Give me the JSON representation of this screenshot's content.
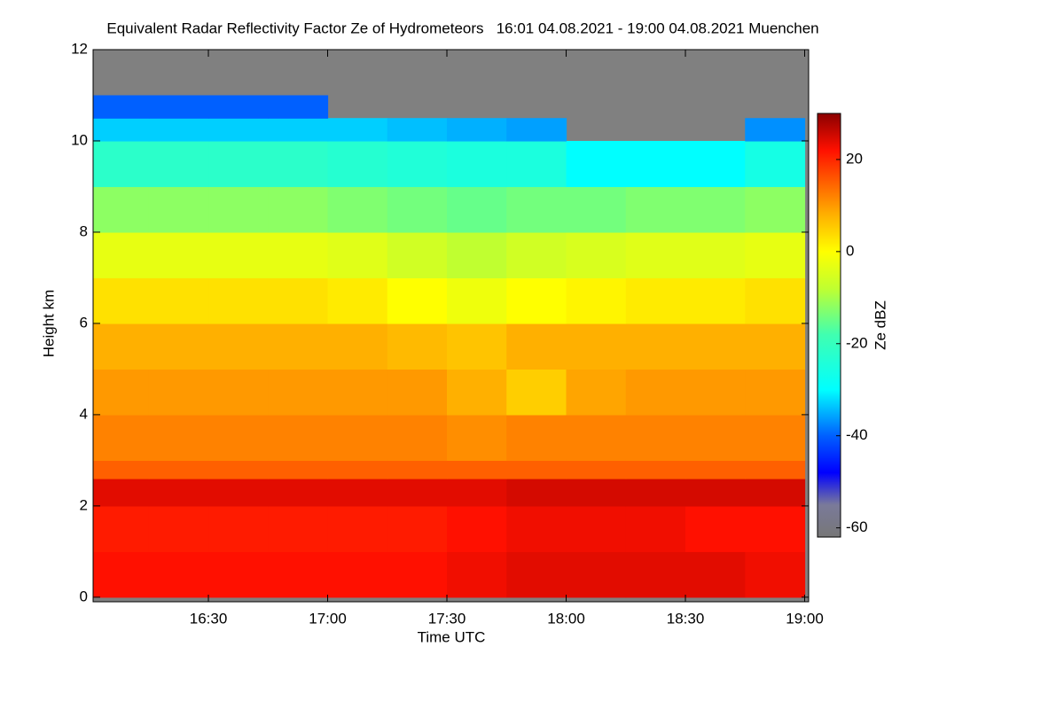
{
  "chart_data": {
    "type": "heatmap",
    "title": "Equivalent Radar Reflectivity Factor Ze of Hydrometeors   16:01 04.08.2021 - 19:00 04.08.2021 Muenchen",
    "x_label": "Time UTC",
    "y_label": "Height km",
    "colorbar_label": "Ze dBZ",
    "xlim": [
      961,
      1141
    ],
    "xticks": [
      {
        "value": 990,
        "label": "16:30"
      },
      {
        "value": 1020,
        "label": "17:00"
      },
      {
        "value": 1050,
        "label": "17:30"
      },
      {
        "value": 1080,
        "label": "18:00"
      },
      {
        "value": 1110,
        "label": "18:30"
      },
      {
        "value": 1140,
        "label": "19:00"
      }
    ],
    "ylim": [
      -0.1,
      12
    ],
    "yticks": [
      0,
      2,
      4,
      6,
      8,
      10,
      12
    ],
    "x_edges": [
      961,
      975,
      990,
      1005,
      1020,
      1035,
      1050,
      1065,
      1080,
      1095,
      1110,
      1125,
      1140
    ],
    "y_edges": [
      0,
      1,
      2,
      2.6,
      3,
      4,
      5,
      6,
      7,
      8,
      9,
      10,
      10.5,
      11,
      12
    ],
    "z": [
      [
        22,
        22,
        22,
        22,
        22,
        22,
        23,
        24,
        24,
        24,
        24,
        23
      ],
      [
        21,
        21,
        21,
        21,
        21,
        21,
        22,
        23,
        23,
        23,
        22,
        22
      ],
      [
        24,
        24,
        24,
        24,
        24,
        24,
        24,
        25,
        25,
        25,
        25,
        25
      ],
      [
        15,
        15,
        15,
        15,
        15,
        15,
        15,
        15,
        15,
        15,
        15,
        15
      ],
      [
        12,
        12,
        12,
        12,
        12,
        12,
        11,
        12,
        12,
        12,
        12,
        12
      ],
      [
        10,
        10,
        10,
        10,
        10,
        10,
        8,
        5,
        9,
        10,
        10,
        10
      ],
      [
        8,
        8,
        8,
        8,
        8,
        7,
        6,
        8,
        8,
        8,
        8,
        8
      ],
      [
        3,
        3,
        3,
        3,
        2,
        0,
        -2,
        0,
        1,
        2,
        2,
        3
      ],
      [
        -3,
        -3,
        -3,
        -3,
        -4,
        -6,
        -8,
        -6,
        -5,
        -4,
        -4,
        -3
      ],
      [
        -12,
        -12,
        -12,
        -12,
        -13,
        -14,
        -15,
        -14,
        -14,
        -13,
        -13,
        -12
      ],
      [
        -22,
        -22,
        -22,
        -22,
        -23,
        -24,
        -25,
        -25,
        -30,
        -30,
        -30,
        -26
      ],
      [
        -33,
        -33,
        -33,
        -33,
        -33,
        -34,
        -35,
        -36,
        null,
        null,
        null,
        -37
      ],
      [
        -40,
        -40,
        -40,
        -40,
        null,
        null,
        null,
        null,
        null,
        null,
        null,
        null
      ],
      [
        null,
        null,
        null,
        null,
        null,
        null,
        null,
        null,
        null,
        null,
        null,
        null
      ]
    ],
    "clim": [
      -62,
      30
    ],
    "cticks": [
      20,
      0,
      -20,
      -40,
      -60
    ],
    "colormap": [
      [
        -62,
        "#777777"
      ],
      [
        -55,
        "#7a7a9a"
      ],
      [
        -48,
        "#0000ff"
      ],
      [
        -40,
        "#0060ff"
      ],
      [
        -30,
        "#00ffff"
      ],
      [
        -18,
        "#40ffb0"
      ],
      [
        -8,
        "#c0ff30"
      ],
      [
        0,
        "#ffff00"
      ],
      [
        8,
        "#ffb000"
      ],
      [
        15,
        "#ff6000"
      ],
      [
        22,
        "#ff1000"
      ],
      [
        30,
        "#8b0000"
      ]
    ],
    "masked_color": "#808080"
  }
}
